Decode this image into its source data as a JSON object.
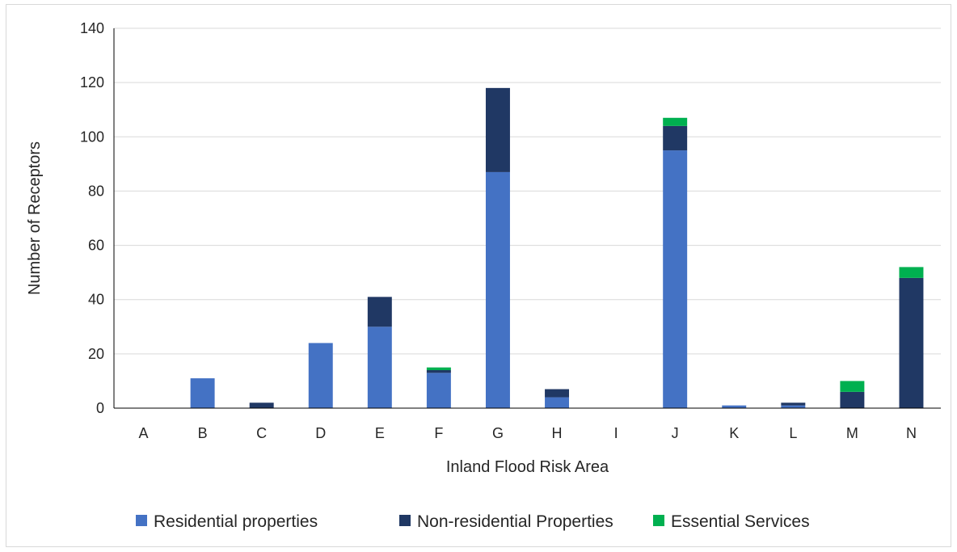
{
  "chart_data": {
    "type": "bar",
    "stacked": true,
    "title": "",
    "xlabel": "Inland Flood Risk Area",
    "ylabel": "Number of Receptors",
    "ylim": [
      0,
      140
    ],
    "yticks": [
      0,
      20,
      40,
      60,
      80,
      100,
      120,
      140
    ],
    "grid": true,
    "legend_position": "bottom",
    "categories": [
      "A",
      "B",
      "C",
      "D",
      "E",
      "F",
      "G",
      "H",
      "I",
      "J",
      "K",
      "L",
      "M",
      "N"
    ],
    "series": [
      {
        "name": "Residential properties",
        "color": "#4472c4",
        "values": [
          0,
          11,
          0,
          24,
          30,
          13,
          87,
          4,
          0,
          95,
          1,
          1,
          0,
          0
        ]
      },
      {
        "name": "Non-residential Properties",
        "color": "#203864",
        "values": [
          0,
          0,
          2,
          0,
          11,
          1,
          31,
          3,
          0,
          9,
          0,
          1,
          6,
          48
        ]
      },
      {
        "name": "Essential Services",
        "color": "#00b050",
        "values": [
          0,
          0,
          0,
          0,
          0,
          1,
          0,
          0,
          0,
          3,
          0,
          0,
          4,
          4
        ]
      }
    ]
  }
}
